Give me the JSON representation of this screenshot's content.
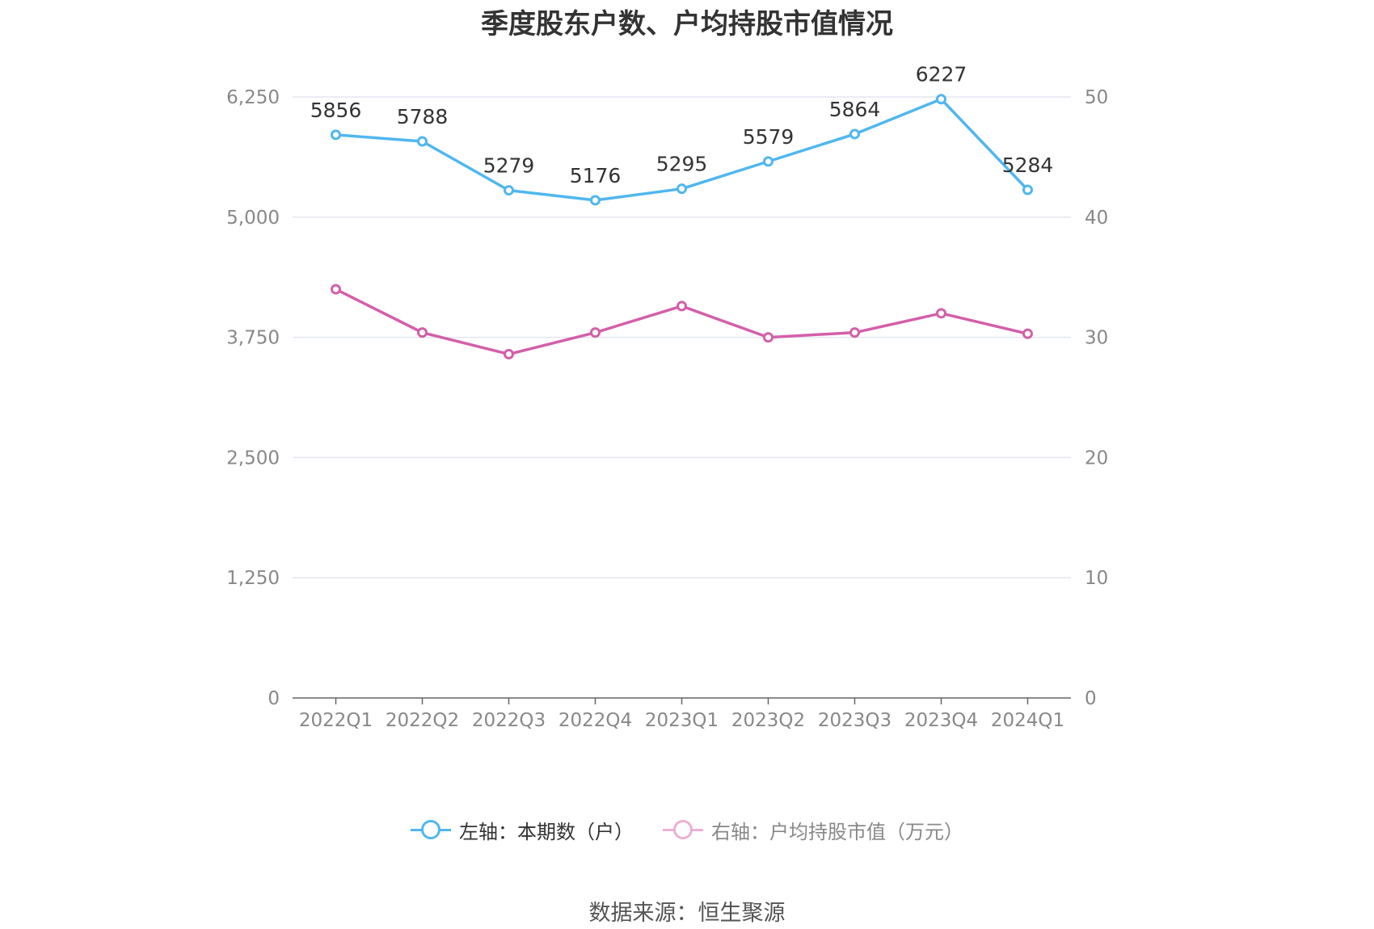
{
  "title": "季度股东户数、户均持股市值情况",
  "source": "数据来源：恒生聚源",
  "chart_data": {
    "type": "line",
    "categories": [
      "2022Q1",
      "2022Q2",
      "2022Q3",
      "2022Q4",
      "2023Q1",
      "2023Q2",
      "2023Q3",
      "2023Q4",
      "2024Q1"
    ],
    "left_axis": {
      "ticks": [
        "0",
        "1,250",
        "2,500",
        "3,750",
        "5,000",
        "6,250"
      ],
      "ylim": [
        0,
        6250
      ]
    },
    "right_axis": {
      "ticks": [
        "0",
        "10",
        "20",
        "30",
        "40",
        "50"
      ],
      "ylim": [
        0,
        50
      ]
    },
    "grid": true,
    "legend_position": "bottom",
    "series": [
      {
        "name": "左轴：本期数（户）",
        "axis": "left",
        "color": "#4fb7ef",
        "values": [
          5856,
          5788,
          5279,
          5176,
          5295,
          5579,
          5864,
          6227,
          5284
        ],
        "labels": [
          "5856",
          "5788",
          "5279",
          "5176",
          "5295",
          "5579",
          "5864",
          "6227",
          "5284"
        ]
      },
      {
        "name": "右轴：户均持股市值（万元）",
        "axis": "right",
        "color": "#d35fa9",
        "values": [
          34.0,
          30.4,
          28.6,
          30.4,
          32.6,
          30.0,
          30.4,
          32.0,
          30.3
        ]
      }
    ]
  }
}
